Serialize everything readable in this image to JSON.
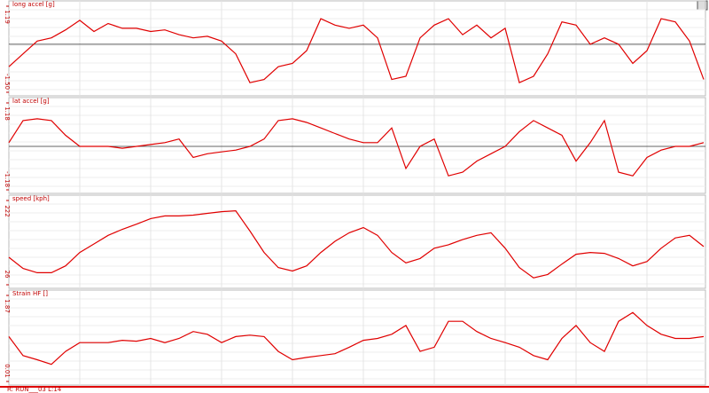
{
  "chart_data": [
    {
      "type": "line",
      "title": "long accel [g]",
      "color": "#e00000",
      "zero_line": true,
      "ylim": [
        -1.5,
        1.19
      ],
      "yticks": [
        {
          "value": -1.5,
          "label": "-1.50"
        },
        1.19
      ],
      "values": [
        -0.7,
        -0.3,
        0.1,
        0.2,
        0.45,
        0.75,
        0.4,
        0.65,
        0.5,
        0.5,
        0.4,
        0.45,
        0.3,
        0.2,
        0.25,
        0.1,
        -0.3,
        -1.2,
        -1.1,
        -0.7,
        -0.6,
        -0.2,
        0.8,
        0.6,
        0.5,
        0.6,
        0.2,
        -1.1,
        -1.0,
        0.2,
        0.6,
        0.8,
        0.3,
        0.6,
        0.2,
        0.5,
        -1.2,
        -1.0,
        -0.3,
        0.7,
        0.6,
        0.0,
        0.2,
        0.0,
        -0.6,
        -0.2,
        0.8,
        0.7,
        0.1,
        -1.1
      ]
    },
    {
      "type": "line",
      "title": "lat accel [g]",
      "color": "#e00000",
      "zero_line": true,
      "ylim": [
        -1.18,
        1.18
      ],
      "yticks": [
        -1.18,
        1.18
      ],
      "values": [
        0.1,
        0.7,
        0.75,
        0.7,
        0.3,
        0.0,
        0.0,
        0.0,
        -0.05,
        0.0,
        0.05,
        0.1,
        0.2,
        -0.3,
        -0.2,
        -0.15,
        -0.1,
        0.0,
        0.2,
        0.7,
        0.75,
        0.65,
        0.5,
        0.35,
        0.2,
        0.1,
        0.1,
        0.5,
        -0.6,
        0.0,
        0.2,
        -0.8,
        -0.7,
        -0.4,
        -0.2,
        0.0,
        0.4,
        0.7,
        0.5,
        0.3,
        -0.4,
        0.1,
        0.7,
        -0.7,
        -0.8,
        -0.3,
        -0.1,
        0.0,
        0.0,
        0.1
      ]
    },
    {
      "type": "line",
      "title": "speed [kph]",
      "color": "#e00000",
      "zero_line": false,
      "ylim": [
        26,
        222
      ],
      "yticks": [
        26,
        222
      ],
      "values": [
        90,
        64,
        54,
        54,
        70,
        101,
        121,
        141,
        155,
        167,
        180,
        186,
        186,
        188,
        192,
        196,
        198,
        151,
        101,
        66,
        58,
        70,
        101,
        127,
        147,
        159,
        141,
        101,
        77,
        87,
        111,
        119,
        131,
        141,
        147,
        111,
        66,
        42,
        50,
        74,
        97,
        101,
        99,
        87,
        70,
        80,
        111,
        135,
        141,
        115
      ]
    },
    {
      "type": "line",
      "title": "Strain HF []",
      "color": "#e00000",
      "zero_line": false,
      "ylim": [
        0.01,
        1.87
      ],
      "yticks": [
        0.01,
        1.87
      ],
      "values": [
        0.98,
        0.57,
        0.48,
        0.38,
        0.66,
        0.85,
        0.85,
        0.85,
        0.9,
        0.88,
        0.94,
        0.85,
        0.94,
        1.09,
        1.03,
        0.85,
        0.98,
        1.01,
        0.98,
        0.66,
        0.48,
        0.53,
        0.57,
        0.61,
        0.75,
        0.9,
        0.94,
        1.03,
        1.22,
        0.66,
        0.75,
        1.31,
        1.31,
        1.09,
        0.94,
        0.85,
        0.75,
        0.57,
        0.48,
        0.94,
        1.22,
        0.85,
        0.66,
        1.31,
        1.5,
        1.22,
        1.03,
        0.94,
        0.94,
        0.98
      ]
    }
  ],
  "footer": "R: RUN___03 L:14"
}
